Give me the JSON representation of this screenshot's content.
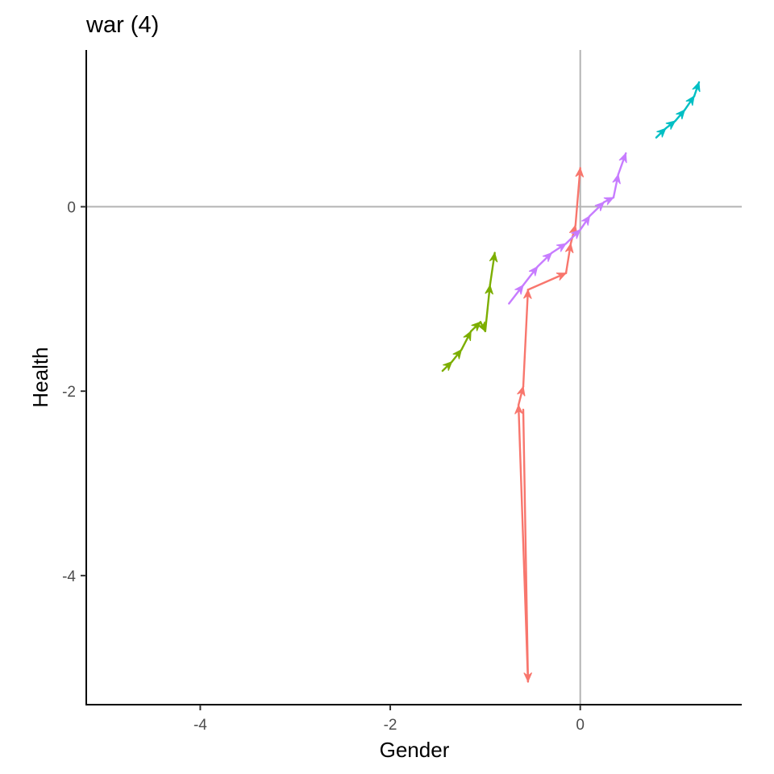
{
  "chart_data": {
    "type": "line",
    "title": "war (4)",
    "xlabel": "Gender",
    "ylabel": "Health",
    "xlim": [
      -5.2,
      1.7
    ],
    "ylim": [
      -5.4,
      1.7
    ],
    "xticks": [
      -4,
      -2,
      0
    ],
    "yticks": [
      -4,
      -2,
      0
    ],
    "xtick_labels": [
      "-4",
      "-2",
      "0"
    ],
    "ytick_labels": [
      "-4",
      "-2",
      "0"
    ],
    "reference_lines": {
      "x": 0,
      "y": 0,
      "color": "#b3b3b3"
    },
    "grid": false,
    "legend": "none",
    "series": [
      {
        "color": "#F8766D",
        "points": [
          [
            -0.6,
            -2.2
          ],
          [
            -0.55,
            -5.15
          ],
          [
            -0.65,
            -2.15
          ],
          [
            -0.6,
            -1.95
          ],
          [
            -0.55,
            -0.9
          ],
          [
            -0.15,
            -0.72
          ],
          [
            -0.1,
            -0.4
          ],
          [
            -0.05,
            -0.2
          ],
          [
            0.0,
            0.42
          ]
        ]
      },
      {
        "color": "#7CAE00",
        "points": [
          [
            -1.45,
            -1.78
          ],
          [
            -1.35,
            -1.68
          ],
          [
            -1.25,
            -1.55
          ],
          [
            -1.15,
            -1.35
          ],
          [
            -1.05,
            -1.25
          ],
          [
            -1.0,
            -1.35
          ],
          [
            -0.95,
            -0.85
          ],
          [
            -0.9,
            -0.5
          ]
        ]
      },
      {
        "color": "#00BFC4",
        "points": [
          [
            0.8,
            0.75
          ],
          [
            0.9,
            0.85
          ],
          [
            1.0,
            0.93
          ],
          [
            1.1,
            1.05
          ],
          [
            1.2,
            1.2
          ],
          [
            1.25,
            1.35
          ]
        ]
      },
      {
        "color": "#C77CFF",
        "points": [
          [
            -0.75,
            -1.05
          ],
          [
            -0.6,
            -0.85
          ],
          [
            -0.45,
            -0.65
          ],
          [
            -0.3,
            -0.5
          ],
          [
            -0.15,
            -0.4
          ],
          [
            0.0,
            -0.25
          ],
          [
            0.1,
            -0.1
          ],
          [
            0.25,
            0.05
          ],
          [
            0.35,
            0.1
          ],
          [
            0.4,
            0.35
          ],
          [
            0.48,
            0.58
          ]
        ]
      }
    ]
  }
}
